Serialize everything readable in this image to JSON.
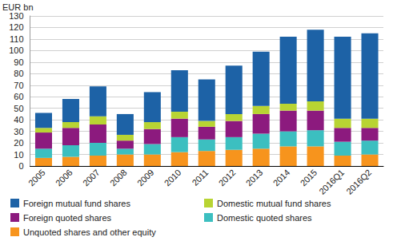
{
  "chart_data": {
    "type": "bar",
    "stacked": true,
    "grid": true,
    "legend": "bottom",
    "y_label": "EUR bn",
    "categories": [
      "2005",
      "2006",
      "2007",
      "2008",
      "2009",
      "2010",
      "2011",
      "2012",
      "2013",
      "2014",
      "2015",
      "2016Q1",
      "2016Q2"
    ],
    "ylim": [
      0,
      130
    ],
    "yticks": [
      0,
      10,
      20,
      30,
      40,
      50,
      60,
      70,
      80,
      90,
      100,
      110,
      120,
      130
    ],
    "series": [
      {
        "name": "Unquoted shares and other equity",
        "color": "#f7941d",
        "values": [
          7,
          8,
          9,
          10,
          10,
          12,
          13,
          14,
          15,
          17,
          17,
          9,
          10
        ]
      },
      {
        "name": "Domestic quoted shares",
        "color": "#3cbfc0",
        "values": [
          8,
          10,
          11,
          5,
          9,
          13,
          10,
          11,
          13,
          13,
          14,
          12,
          12
        ]
      },
      {
        "name": "Foreign quoted shares",
        "color": "#8c1a7e",
        "values": [
          14,
          15,
          16,
          7,
          13,
          16,
          11,
          14,
          17,
          18,
          17,
          12,
          11
        ]
      },
      {
        "name": "Domestic mutual fund shares",
        "color": "#b8d433",
        "values": [
          4,
          5,
          7,
          5,
          6,
          6,
          5,
          6,
          7,
          6,
          8,
          8,
          8
        ]
      },
      {
        "name": "Foreign mutual fund shares",
        "color": "#1d62a6",
        "values": [
          13,
          20,
          26,
          18,
          26,
          36,
          36,
          42,
          47,
          58,
          62,
          71,
          74
        ]
      }
    ]
  }
}
